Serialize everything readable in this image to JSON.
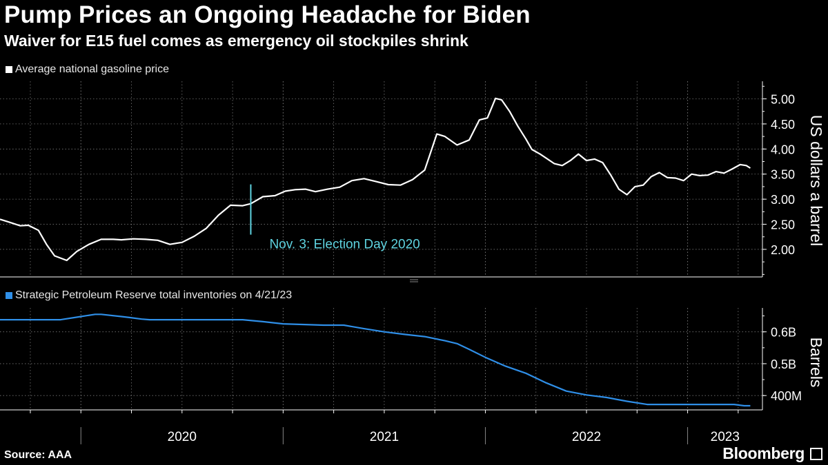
{
  "header": {
    "title": "Pump Prices an Ongoing Headache for Biden",
    "subtitle": "Waiver for E15 fuel comes as emergency oil stockpiles shrink"
  },
  "footer": {
    "source": "Source: AAA",
    "brand": "Bloomberg"
  },
  "colors": {
    "gas": "#ffffff",
    "spr": "#2f8fe8",
    "annotation": "#5fd3e0",
    "grid": "#8a8a8a"
  },
  "chart_data": [
    {
      "type": "line",
      "legend": "Average national gasoline price",
      "ylabel": "US dollars a barrel",
      "ylim": [
        1.45,
        5.35
      ],
      "yticks": [
        2.0,
        2.5,
        3.0,
        3.5,
        4.0,
        4.5,
        5.0
      ],
      "ytick_labels": [
        "2.00",
        "2.50",
        "3.00",
        "3.50",
        "4.00",
        "4.50",
        "5.00"
      ],
      "xlim": [
        2019.6,
        2023.37
      ],
      "series": [
        {
          "name": "Average national gasoline price",
          "x": [
            2019.6,
            2019.64,
            2019.7,
            2019.74,
            2019.79,
            2019.83,
            2019.87,
            2019.93,
            2019.98,
            2020.04,
            2020.1,
            2020.16,
            2020.2,
            2020.26,
            2020.32,
            2020.38,
            2020.44,
            2020.5,
            2020.56,
            2020.62,
            2020.68,
            2020.74,
            2020.8,
            2020.84,
            2020.9,
            2020.96,
            2021.01,
            2021.06,
            2021.11,
            2021.16,
            2021.22,
            2021.28,
            2021.34,
            2021.4,
            2021.46,
            2021.52,
            2021.58,
            2021.64,
            2021.7,
            2021.76,
            2021.8,
            2021.86,
            2021.92,
            2021.97,
            2022.01,
            2022.05,
            2022.08,
            2022.12,
            2022.16,
            2022.2,
            2022.23,
            2022.27,
            2022.3,
            2022.34,
            2022.38,
            2022.42,
            2022.46,
            2022.5,
            2022.54,
            2022.58,
            2022.62,
            2022.66,
            2022.7,
            2022.74,
            2022.78,
            2022.82,
            2022.86,
            2022.9,
            2022.94,
            2022.98,
            2023.02,
            2023.06,
            2023.1,
            2023.14,
            2023.18,
            2023.22,
            2023.26,
            2023.29,
            2023.31
          ],
          "y": [
            2.6,
            2.55,
            2.47,
            2.48,
            2.38,
            2.1,
            1.87,
            1.78,
            1.96,
            2.1,
            2.2,
            2.2,
            2.19,
            2.21,
            2.2,
            2.18,
            2.1,
            2.14,
            2.26,
            2.42,
            2.68,
            2.88,
            2.87,
            2.91,
            3.05,
            3.07,
            3.16,
            3.19,
            3.2,
            3.15,
            3.2,
            3.24,
            3.37,
            3.41,
            3.35,
            3.29,
            3.28,
            3.39,
            3.58,
            4.3,
            4.25,
            4.08,
            4.18,
            4.58,
            4.62,
            5.01,
            4.98,
            4.75,
            4.46,
            4.2,
            3.99,
            3.9,
            3.82,
            3.71,
            3.67,
            3.77,
            3.9,
            3.77,
            3.8,
            3.73,
            3.48,
            3.2,
            3.09,
            3.25,
            3.28,
            3.45,
            3.53,
            3.43,
            3.42,
            3.37,
            3.5,
            3.47,
            3.48,
            3.55,
            3.52,
            3.6,
            3.69,
            3.67,
            3.62
          ]
        }
      ],
      "annotation": {
        "x": 2020.84,
        "label": "Nov. 3: Election Day 2020"
      }
    },
    {
      "type": "line",
      "legend": "Strategic Petroleum Reserve total inventories on 4/21/23",
      "ylabel": "Barrels",
      "ylim": [
        355,
        675
      ],
      "yticks": [
        400,
        500,
        600
      ],
      "ytick_labels": [
        "400M",
        "0.5B",
        "0.6B"
      ],
      "xlim": [
        2019.6,
        2023.37
      ],
      "series": [
        {
          "name": "Strategic Petroleum Reserve total inventories",
          "x": [
            2019.6,
            2019.9,
            2020.0,
            2020.07,
            2020.1,
            2020.2,
            2020.24,
            2020.3,
            2020.34,
            2020.6,
            2020.8,
            2020.9,
            2021.0,
            2021.2,
            2021.3,
            2021.4,
            2021.5,
            2021.6,
            2021.7,
            2021.8,
            2021.86,
            2021.92,
            2022.0,
            2022.1,
            2022.2,
            2022.3,
            2022.4,
            2022.5,
            2022.6,
            2022.7,
            2022.8,
            2022.9,
            2023.0,
            2023.1,
            2023.18,
            2023.23,
            2023.28,
            2023.31
          ],
          "y": [
            638,
            638,
            648,
            655,
            655,
            648,
            645,
            640,
            638,
            638,
            638,
            632,
            625,
            621,
            621,
            610,
            600,
            592,
            585,
            572,
            563,
            545,
            520,
            492,
            470,
            440,
            414,
            402,
            394,
            382,
            372,
            372,
            372,
            372,
            372,
            372,
            368,
            368
          ]
        }
      ]
    }
  ],
  "x_axis": {
    "ticks": [
      2020,
      2021,
      2022,
      2023
    ],
    "tick_labels": [
      "2020",
      "2021",
      "2022",
      "2023"
    ],
    "minor_per_year": 4
  }
}
